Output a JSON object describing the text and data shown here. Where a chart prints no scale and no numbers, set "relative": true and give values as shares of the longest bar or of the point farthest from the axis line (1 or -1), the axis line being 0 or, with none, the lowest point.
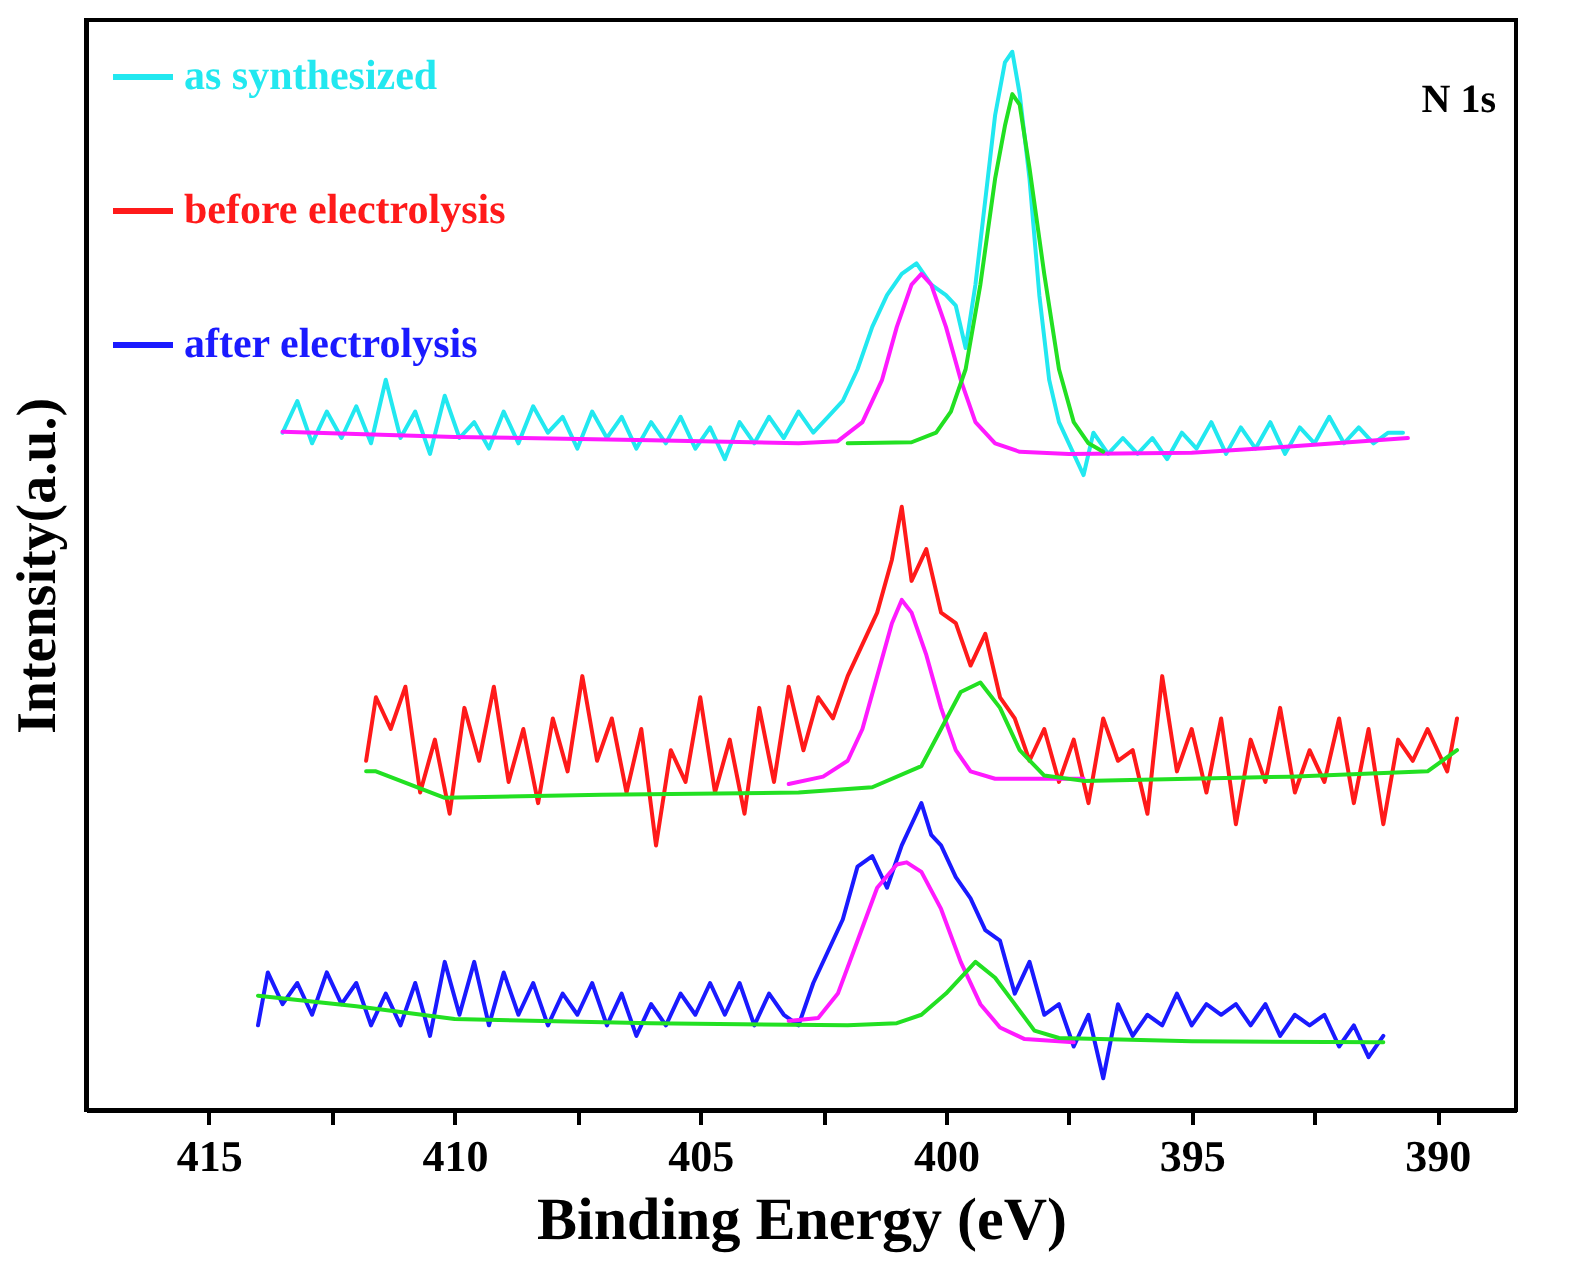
{
  "chart_data": {
    "type": "line",
    "relative": true,
    "xlabel": "Binding Energy (eV)",
    "ylabel": "Intensity(a.u.)",
    "annotations": [
      "N 1s"
    ],
    "legend": "top left",
    "grid": false,
    "marker": "none",
    "xlim": [
      417.5,
      388.4
    ],
    "xticks": [
      415,
      {
        "value": 412.5,
        "label": null
      },
      410,
      {
        "value": 407.5,
        "label": null
      },
      405,
      {
        "value": 402.5,
        "label": null
      },
      400,
      {
        "value": 397.5,
        "label": null
      },
      395,
      {
        "value": 392.5,
        "label": null
      },
      390
    ],
    "series": [
      {
        "name": "as synthesized",
        "color": "#22e8f0",
        "x": [
          413.5,
          413.2,
          412.9,
          412.6,
          412.3,
          412,
          411.7,
          411.4,
          411.1,
          410.8,
          410.5,
          410.2,
          409.9,
          409.6,
          409.3,
          409,
          408.7,
          408.4,
          408.1,
          407.8,
          407.5,
          407.2,
          406.9,
          406.6,
          406.3,
          406,
          405.7,
          405.4,
          405.1,
          404.8,
          404.5,
          404.2,
          403.9,
          403.6,
          403.3,
          403,
          402.7,
          402.4,
          402.1,
          401.8,
          401.5,
          401.2,
          400.9,
          400.6,
          400.3,
          400,
          399.8,
          399.6,
          399.4,
          399.2,
          399,
          398.8,
          398.65,
          398.5,
          398.3,
          398.1,
          397.9,
          397.7,
          397.5,
          397.2,
          397,
          396.7,
          396.4,
          396.1,
          395.8,
          395.5,
          395.2,
          394.9,
          394.6,
          394.3,
          394,
          393.7,
          393.4,
          393.1,
          392.8,
          392.5,
          392.2,
          391.9,
          391.6,
          391.3,
          391,
          390.7
        ],
        "values": [
          0.64,
          0.67,
          0.63,
          0.66,
          0.635,
          0.665,
          0.63,
          0.69,
          0.635,
          0.66,
          0.62,
          0.675,
          0.635,
          0.65,
          0.625,
          0.66,
          0.63,
          0.665,
          0.64,
          0.655,
          0.625,
          0.66,
          0.635,
          0.655,
          0.625,
          0.65,
          0.63,
          0.655,
          0.625,
          0.645,
          0.615,
          0.65,
          0.63,
          0.655,
          0.635,
          0.66,
          0.64,
          0.655,
          0.67,
          0.7,
          0.74,
          0.77,
          0.79,
          0.8,
          0.78,
          0.77,
          0.76,
          0.72,
          0.78,
          0.86,
          0.94,
          0.99,
          1.0,
          0.96,
          0.88,
          0.77,
          0.69,
          0.65,
          0.63,
          0.6,
          0.64,
          0.62,
          0.635,
          0.62,
          0.635,
          0.615,
          0.64,
          0.625,
          0.65,
          0.62,
          0.645,
          0.625,
          0.65,
          0.62,
          0.645,
          0.63,
          0.655,
          0.63,
          0.645,
          0.63,
          0.64,
          0.64
        ]
      },
      {
        "name": "before electrolysis",
        "color": "#ff1a1a",
        "x": [
          411.8,
          411.6,
          411.3,
          411,
          410.7,
          410.4,
          410.1,
          409.8,
          409.5,
          409.2,
          408.9,
          408.6,
          408.3,
          408,
          407.7,
          407.4,
          407.1,
          406.8,
          406.5,
          406.2,
          405.9,
          405.6,
          405.3,
          405,
          404.7,
          404.4,
          404.1,
          403.8,
          403.5,
          403.2,
          402.9,
          402.6,
          402.3,
          402,
          401.7,
          401.4,
          401.1,
          400.9,
          400.7,
          400.4,
          400.1,
          399.8,
          399.5,
          399.2,
          398.9,
          398.6,
          398.3,
          398,
          397.7,
          397.4,
          397.1,
          396.8,
          396.5,
          396.2,
          395.9,
          395.6,
          395.3,
          395,
          394.7,
          394.4,
          394.1,
          393.8,
          393.5,
          393.2,
          392.9,
          392.6,
          392.3,
          392,
          391.7,
          391.4,
          391.1,
          390.8,
          390.5,
          390.2,
          389.8,
          389.6
        ],
        "values": [
          0.33,
          0.39,
          0.36,
          0.4,
          0.3,
          0.35,
          0.28,
          0.38,
          0.33,
          0.4,
          0.31,
          0.36,
          0.29,
          0.37,
          0.32,
          0.41,
          0.33,
          0.37,
          0.3,
          0.36,
          0.25,
          0.34,
          0.31,
          0.39,
          0.3,
          0.35,
          0.28,
          0.38,
          0.31,
          0.4,
          0.34,
          0.39,
          0.37,
          0.41,
          0.44,
          0.47,
          0.52,
          0.57,
          0.5,
          0.53,
          0.47,
          0.46,
          0.42,
          0.45,
          0.39,
          0.37,
          0.33,
          0.36,
          0.31,
          0.35,
          0.29,
          0.37,
          0.33,
          0.34,
          0.28,
          0.41,
          0.32,
          0.36,
          0.3,
          0.37,
          0.27,
          0.35,
          0.31,
          0.38,
          0.3,
          0.34,
          0.31,
          0.37,
          0.29,
          0.36,
          0.27,
          0.35,
          0.33,
          0.36,
          0.32,
          0.37
        ]
      },
      {
        "name": "after electrolysis",
        "color": "#1a1aff",
        "x": [
          414,
          413.8,
          413.5,
          413.2,
          412.9,
          412.6,
          412.3,
          412,
          411.7,
          411.4,
          411.1,
          410.8,
          410.5,
          410.2,
          409.9,
          409.6,
          409.3,
          409,
          408.7,
          408.4,
          408.1,
          407.8,
          407.5,
          407.2,
          406.9,
          406.6,
          406.3,
          406,
          405.7,
          405.4,
          405.1,
          404.8,
          404.5,
          404.2,
          403.9,
          403.6,
          403.3,
          403,
          402.7,
          402.4,
          402.1,
          401.8,
          401.5,
          401.2,
          400.9,
          400.7,
          400.5,
          400.3,
          400.1,
          399.8,
          399.5,
          399.2,
          398.9,
          398.6,
          398.3,
          398,
          397.7,
          397.4,
          397.1,
          396.8,
          396.5,
          396.2,
          395.9,
          395.6,
          395.3,
          395,
          394.7,
          394.4,
          394.1,
          393.8,
          393.5,
          393.2,
          392.9,
          392.6,
          392.3,
          392,
          391.7,
          391.4,
          391.1
        ],
        "values": [
          0.08,
          0.13,
          0.1,
          0.12,
          0.09,
          0.13,
          0.1,
          0.12,
          0.08,
          0.11,
          0.08,
          0.12,
          0.07,
          0.14,
          0.09,
          0.14,
          0.08,
          0.13,
          0.09,
          0.12,
          0.08,
          0.11,
          0.09,
          0.12,
          0.08,
          0.11,
          0.07,
          0.1,
          0.08,
          0.11,
          0.09,
          0.12,
          0.09,
          0.12,
          0.08,
          0.11,
          0.09,
          0.08,
          0.12,
          0.15,
          0.18,
          0.23,
          0.24,
          0.21,
          0.25,
          0.27,
          0.29,
          0.26,
          0.25,
          0.22,
          0.2,
          0.17,
          0.16,
          0.11,
          0.14,
          0.09,
          0.1,
          0.06,
          0.09,
          0.03,
          0.1,
          0.07,
          0.09,
          0.08,
          0.11,
          0.08,
          0.1,
          0.09,
          0.1,
          0.08,
          0.1,
          0.07,
          0.09,
          0.08,
          0.09,
          0.06,
          0.08,
          0.05,
          0.07
        ]
      },
      {
        "color": "#ff1aff",
        "x": [
          413.5,
          410,
          406,
          403,
          402.2,
          401.7,
          401.3,
          401,
          400.7,
          400.5,
          400.3,
          400,
          399.7,
          399.4,
          399,
          398.5,
          397.5,
          395,
          393,
          390.6
        ],
        "values": [
          0.641,
          0.636,
          0.633,
          0.63,
          0.632,
          0.65,
          0.69,
          0.74,
          0.78,
          0.79,
          0.78,
          0.74,
          0.69,
          0.65,
          0.63,
          0.622,
          0.62,
          0.621,
          0.627,
          0.635
        ]
      },
      {
        "color": "#22e022",
        "x": [
          402,
          400.7,
          400.2,
          399.9,
          399.6,
          399.3,
          399,
          398.8,
          398.65,
          398.5,
          398.3,
          398,
          397.7,
          397.4,
          397.1,
          396.8
        ],
        "values": [
          0.63,
          0.631,
          0.64,
          0.66,
          0.7,
          0.78,
          0.88,
          0.93,
          0.96,
          0.95,
          0.89,
          0.79,
          0.7,
          0.65,
          0.63,
          0.622
        ]
      },
      {
        "color": "#ff1aff",
        "x": [
          403.2,
          402.5,
          402,
          401.7,
          401.4,
          401.1,
          400.9,
          400.7,
          400.4,
          400.1,
          399.8,
          399.5,
          399,
          397.2
        ],
        "values": [
          0.308,
          0.315,
          0.33,
          0.36,
          0.41,
          0.46,
          0.482,
          0.47,
          0.43,
          0.38,
          0.34,
          0.32,
          0.313,
          0.313
        ]
      },
      {
        "color": "#22e022",
        "x": [
          411.8,
          411.6,
          410.2,
          407,
          403,
          401.5,
          400.5,
          400.1,
          399.7,
          399.3,
          398.9,
          398.5,
          398,
          397.2,
          393,
          390.2,
          389.6
        ],
        "values": [
          0.32,
          0.32,
          0.295,
          0.298,
          0.3,
          0.305,
          0.325,
          0.36,
          0.395,
          0.404,
          0.38,
          0.34,
          0.316,
          0.311,
          0.315,
          0.32,
          0.34
        ]
      },
      {
        "color": "#ff1aff",
        "x": [
          403.2,
          402.6,
          402.2,
          401.8,
          401.4,
          401,
          400.8,
          400.5,
          400.1,
          399.7,
          399.3,
          398.9,
          398.4,
          397.4
        ],
        "values": [
          0.084,
          0.087,
          0.11,
          0.16,
          0.21,
          0.232,
          0.234,
          0.225,
          0.19,
          0.14,
          0.1,
          0.078,
          0.067,
          0.064
        ]
      },
      {
        "color": "#22e022",
        "x": [
          414,
          412,
          410,
          406,
          402,
          401,
          400.5,
          400,
          399.4,
          399,
          398.6,
          398.2,
          397.7,
          395,
          391.1
        ],
        "values": [
          0.108,
          0.098,
          0.086,
          0.082,
          0.08,
          0.082,
          0.09,
          0.11,
          0.14,
          0.125,
          0.1,
          0.075,
          0.068,
          0.065,
          0.064
        ]
      }
    ]
  }
}
